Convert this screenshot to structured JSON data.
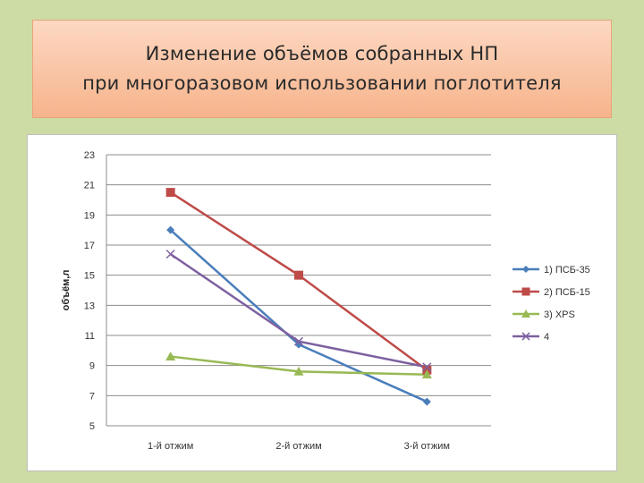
{
  "title": {
    "line1": "Изменение объёмов собранных НП",
    "line2": "при многоразовом использовании поглотителя"
  },
  "chart_data": {
    "type": "line",
    "title": "",
    "xlabel": "",
    "ylabel": "объём,л",
    "categories": [
      "1-й отжим",
      "2-й отжим",
      "3-й отжим"
    ],
    "ylim": [
      5,
      23
    ],
    "yticks": [
      5,
      7,
      9,
      11,
      13,
      15,
      17,
      19,
      21,
      23
    ],
    "grid": true,
    "legend_position": "right",
    "series": [
      {
        "name": "1) ПСБ-35",
        "values": [
          18.0,
          10.4,
          6.6
        ],
        "color": "#4a7ebb",
        "marker": "diamond"
      },
      {
        "name": "2) ПСБ-15",
        "values": [
          20.5,
          15.0,
          8.7
        ],
        "color": "#be4b48",
        "marker": "square"
      },
      {
        "name": "3) XPS",
        "values": [
          9.6,
          8.6,
          8.4
        ],
        "color": "#98b954",
        "marker": "triangle"
      },
      {
        "name": "4",
        "values": [
          16.4,
          10.6,
          8.9
        ],
        "color": "#7d60a0",
        "marker": "x"
      }
    ]
  }
}
